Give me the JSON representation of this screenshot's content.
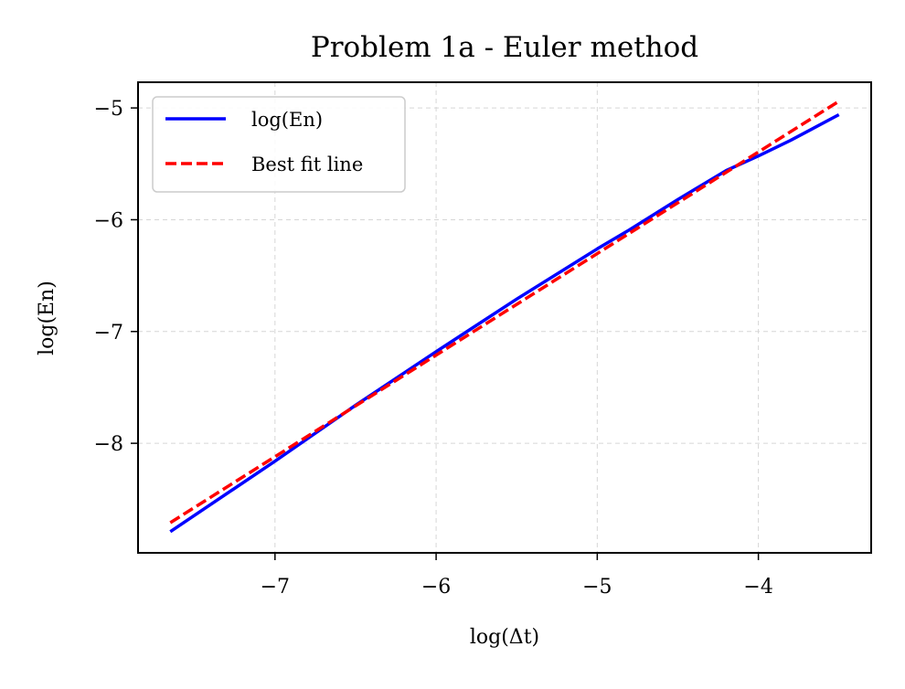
{
  "chart_data": {
    "type": "line",
    "title": "Problem 1a - Euler method",
    "xlabel": "log(Δt)",
    "ylabel": "log(En)",
    "xlim": [
      -7.85,
      -3.3
    ],
    "ylim": [
      -8.98,
      -4.77
    ],
    "xticks": [
      {
        "value": -7,
        "label": "−7"
      },
      {
        "value": -6,
        "label": "−6"
      },
      {
        "value": -5,
        "label": "−5"
      },
      {
        "value": -4,
        "label": "−4"
      }
    ],
    "yticks": [
      {
        "value": -5,
        "label": "−5"
      },
      {
        "value": -6,
        "label": "−6"
      },
      {
        "value": -7,
        "label": "−7"
      },
      {
        "value": -8,
        "label": "−8"
      }
    ],
    "grid": true,
    "legend_position": "upper-left",
    "series": [
      {
        "name": "log(En)",
        "color": "#0000ff",
        "style": "solid",
        "x": [
          -7.65,
          -7.0,
          -6.5,
          -6.0,
          -5.5,
          -5.0,
          -4.8,
          -4.5,
          -4.2,
          -4.0,
          -3.8,
          -3.5
        ],
        "y": [
          -8.79,
          -8.16,
          -7.66,
          -7.18,
          -6.71,
          -6.26,
          -6.09,
          -5.82,
          -5.56,
          -5.43,
          -5.29,
          -5.06
        ]
      },
      {
        "name": "Best fit line",
        "color": "#ff0000",
        "style": "dashed",
        "x": [
          -7.65,
          -3.5
        ],
        "y": [
          -8.71,
          -4.94
        ]
      }
    ]
  }
}
